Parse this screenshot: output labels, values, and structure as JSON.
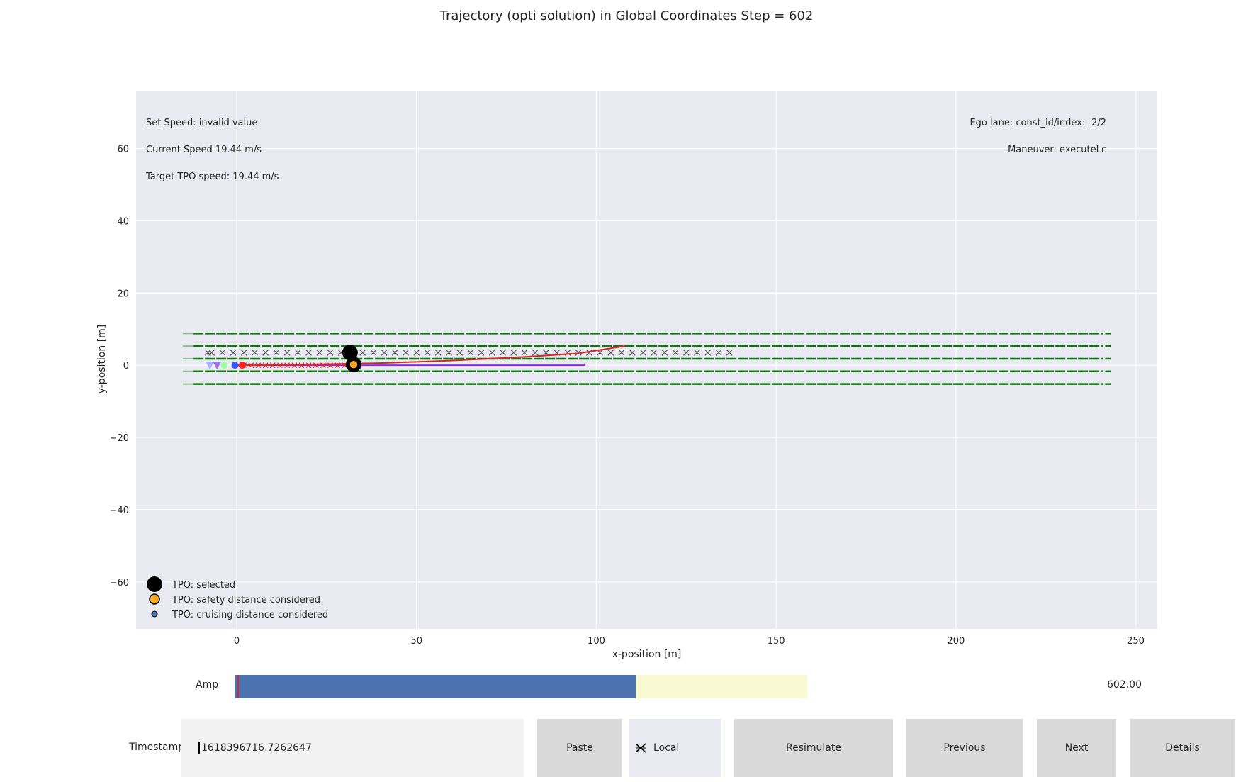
{
  "chart_data": {
    "type": "scatter",
    "title": "Trajectory (opti solution) in Global Coordinates Step = 602",
    "xlabel": "x-position [m]",
    "ylabel": "y-position [m]",
    "xlim": [
      -28,
      256
    ],
    "ylim": [
      -73,
      76
    ],
    "xticks": [
      0,
      50,
      100,
      150,
      200,
      250
    ],
    "yticks": [
      -60,
      -40,
      -20,
      0,
      20,
      40,
      60
    ],
    "grid": true,
    "legend_position": "lower-left",
    "colors": {
      "background": "#eaeaf2",
      "lane": "#117711",
      "trajectory": "#d62728",
      "reference": "#8a2be2",
      "cross": "#555555"
    },
    "lane_lines": {
      "y": [
        8.8,
        5.3,
        1.8,
        -1.7,
        -5.2
      ],
      "x_start": -15,
      "x_end": 243
    },
    "crosses_upper": {
      "y": 3.5,
      "x_start": -7,
      "x_end": 138,
      "step": 3
    },
    "crosses_ego": {
      "y": 0,
      "x_start": 2,
      "x_end": 31,
      "step": 2
    },
    "trajectory": [
      [
        0,
        0
      ],
      [
        20,
        0.2
      ],
      [
        40,
        0.6
      ],
      [
        60,
        1.3
      ],
      [
        80,
        2.3
      ],
      [
        95,
        3.3
      ],
      [
        108,
        5.3
      ]
    ],
    "reference_line": [
      [
        -1,
        0
      ],
      [
        97,
        0
      ]
    ],
    "tpo_selected": [
      [
        31.5,
        3.5
      ],
      [
        32.5,
        0.2
      ]
    ],
    "tpo_safety": [
      [
        32.5,
        0.2
      ]
    ],
    "ego_markers": [
      {
        "shape": "triangle",
        "x": -7.5,
        "y": 0,
        "color": "#aab0ff"
      },
      {
        "shape": "triangle",
        "x": -5.5,
        "y": 0,
        "color": "#9d77dd"
      },
      {
        "shape": "circle",
        "x": -3.5,
        "y": 0,
        "color": "#9cff9c"
      },
      {
        "shape": "circle",
        "x": -0.5,
        "y": 0,
        "color": "#3355ff"
      },
      {
        "shape": "circle",
        "x": 1.5,
        "y": 0,
        "color": "#ff2020"
      }
    ],
    "annotations_left": [
      "Set Speed: invalid value",
      "Current Speed 19.44 m/s",
      "Target TPO speed: 19.44 m/s"
    ],
    "annotations_right": [
      "Ego lane: const_id/index: -2/2",
      "Maneuver: executeLc"
    ],
    "legend": [
      {
        "label": "TPO: selected",
        "marker": "large-black-circle"
      },
      {
        "label": "TPO: safety distance considered",
        "marker": "orange-circle"
      },
      {
        "label": "TPO: cruising distance considered",
        "marker": "small-blue-circle"
      }
    ]
  },
  "controls": {
    "slider": {
      "label": "Amp",
      "value_text": "602.00",
      "fill_fraction": 0.7
    },
    "timestamp": {
      "label": "Timestamp",
      "value": "1618396716.7262647"
    },
    "buttons": {
      "paste": "Paste",
      "local": "Local",
      "resimulate": "Resimulate",
      "previous": "Previous",
      "next": "Next",
      "details": "Details"
    }
  }
}
